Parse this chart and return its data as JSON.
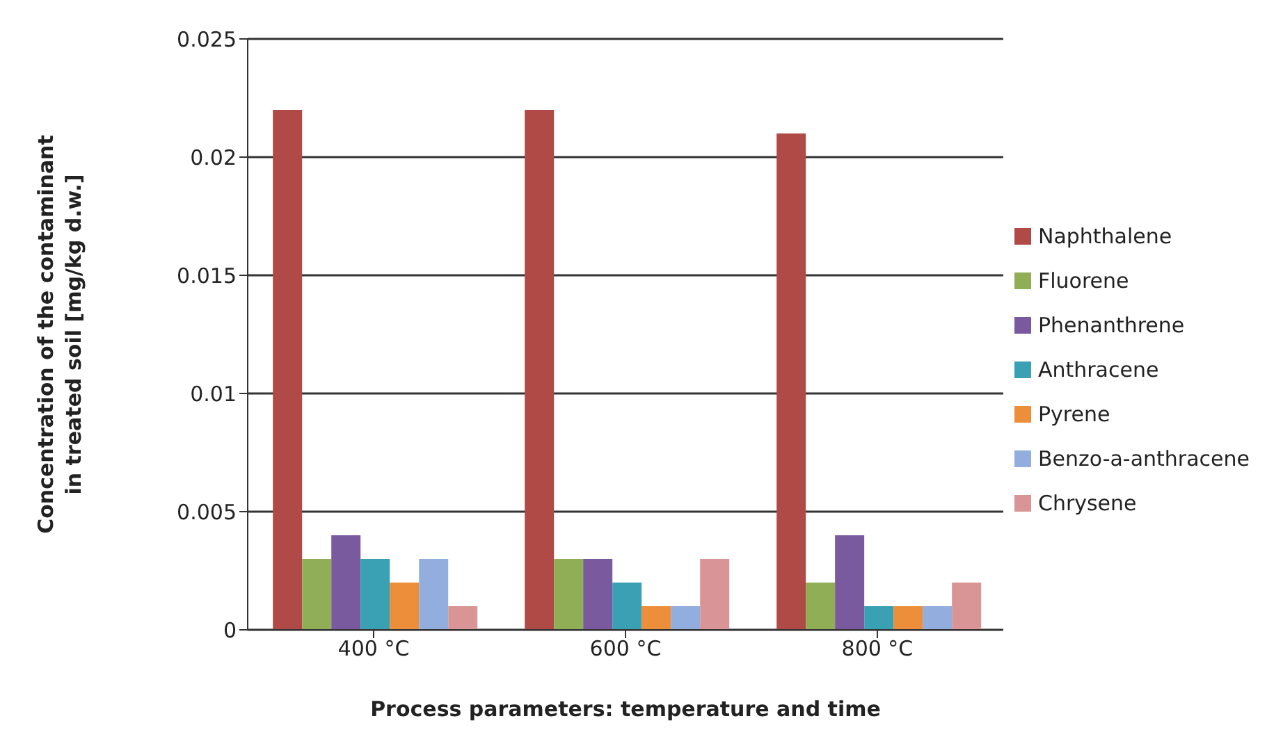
{
  "chart_data": {
    "type": "bar",
    "xlabel": "Process parameters: temperature and time",
    "ylabel": "Concentration of the contaminant in treated soil [mg/kg d.w.]",
    "categories": [
      "400 °C",
      "600 °C",
      "800 °C"
    ],
    "series": [
      {
        "name": "Naphthalene",
        "color": "#b04a46",
        "values": [
          0.022,
          0.022,
          0.021
        ]
      },
      {
        "name": "Fluorene",
        "color": "#8fae55",
        "values": [
          0.003,
          0.003,
          0.002
        ]
      },
      {
        "name": "Phenanthrene",
        "color": "#7a5a9f",
        "values": [
          0.004,
          0.003,
          0.004
        ]
      },
      {
        "name": "Anthracene",
        "color": "#3aa0b4",
        "values": [
          0.003,
          0.002,
          0.001
        ]
      },
      {
        "name": "Pyrene",
        "color": "#ed8f3a",
        "values": [
          0.002,
          0.001,
          0.001
        ]
      },
      {
        "name": "Benzo-a-anthracene",
        "color": "#92aede",
        "values": [
          0.003,
          0.001,
          0.001
        ]
      },
      {
        "name": "Chrysene",
        "color": "#d99595",
        "values": [
          0.001,
          0.003,
          0.002
        ]
      }
    ],
    "ylim": [
      0,
      0.025
    ],
    "yticks": [
      0,
      0.005,
      0.01,
      0.015,
      0.02,
      0.025
    ],
    "grid": "y",
    "legend": "right"
  }
}
